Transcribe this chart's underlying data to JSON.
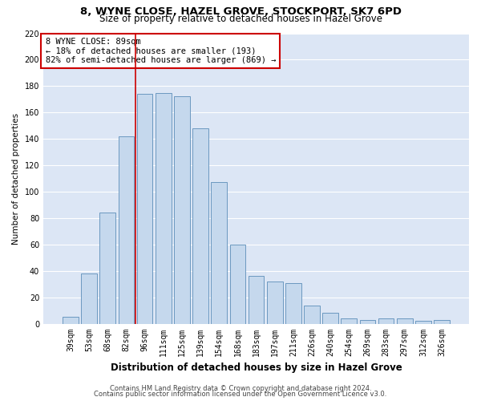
{
  "title1": "8, WYNE CLOSE, HAZEL GROVE, STOCKPORT, SK7 6PD",
  "title2": "Size of property relative to detached houses in Hazel Grove",
  "xlabel": "Distribution of detached houses by size in Hazel Grove",
  "ylabel": "Number of detached properties",
  "categories": [
    "39sqm",
    "53sqm",
    "68sqm",
    "82sqm",
    "96sqm",
    "111sqm",
    "125sqm",
    "139sqm",
    "154sqm",
    "168sqm",
    "183sqm",
    "197sqm",
    "211sqm",
    "226sqm",
    "240sqm",
    "254sqm",
    "269sqm",
    "283sqm",
    "297sqm",
    "312sqm",
    "326sqm"
  ],
  "values": [
    5,
    38,
    84,
    142,
    174,
    175,
    172,
    148,
    107,
    60,
    36,
    32,
    31,
    14,
    8,
    4,
    3,
    4,
    4,
    2,
    3
  ],
  "bar_color": "#c5d8ed",
  "bar_edge_color": "#5b8db8",
  "bg_color": "#dce6f5",
  "grid_color": "#ffffff",
  "redline_x": 3.5,
  "annotation_text": "8 WYNE CLOSE: 89sqm\n← 18% of detached houses are smaller (193)\n82% of semi-detached houses are larger (869) →",
  "annotation_box_color": "#ffffff",
  "annotation_box_edge": "#cc0000",
  "redline_color": "#cc0000",
  "ylim": [
    0,
    220
  ],
  "yticks": [
    0,
    20,
    40,
    60,
    80,
    100,
    120,
    140,
    160,
    180,
    200,
    220
  ],
  "footer1": "Contains HM Land Registry data © Crown copyright and database right 2024.",
  "footer2": "Contains public sector information licensed under the Open Government Licence v3.0.",
  "title1_fontsize": 9.5,
  "title2_fontsize": 8.5,
  "xlabel_fontsize": 8.5,
  "ylabel_fontsize": 7.5,
  "tick_fontsize": 7,
  "annotation_fontsize": 7.5,
  "footer_fontsize": 6
}
